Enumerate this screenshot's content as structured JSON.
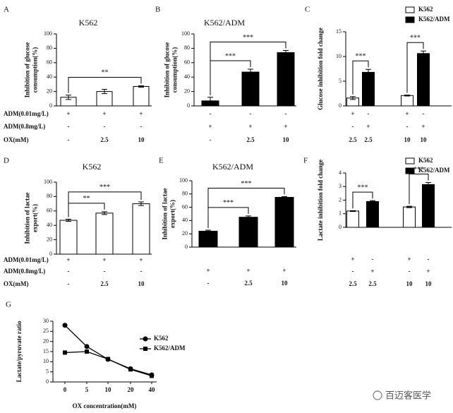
{
  "chart_data": [
    {
      "type": "bar",
      "letter": "A",
      "title": "K562",
      "ylabel": [
        "Inhibition of glucose",
        "consumption(%)"
      ],
      "ylim": [
        0,
        100
      ],
      "yticks": [
        0,
        20,
        40,
        60,
        80,
        100
      ],
      "series": [
        {
          "color": "#ffffff",
          "values": [
            12,
            20,
            27
          ],
          "errors": [
            3,
            3,
            1
          ]
        }
      ],
      "conditions": [
        {
          "label": "ADM(0.01mg/L)",
          "values": [
            "+",
            "+",
            "+"
          ]
        },
        {
          "label": "ADM(0.8mg/L)",
          "values": [
            "-",
            "-",
            "-"
          ]
        },
        {
          "label": "OX(mM)",
          "values": [
            "-",
            "2.5",
            "10"
          ]
        }
      ],
      "annotations": [
        {
          "text": "**",
          "between": [
            0,
            2
          ]
        }
      ]
    },
    {
      "type": "bar",
      "letter": "B",
      "title": "K562/ADM",
      "ylabel": [
        "Inhibition of glucose",
        "consumption(%)"
      ],
      "ylim": [
        0,
        100
      ],
      "yticks": [
        0,
        20,
        40,
        60,
        80,
        100
      ],
      "series": [
        {
          "color": "#000000",
          "values": [
            7,
            47,
            74
          ],
          "errors": [
            5,
            4,
            3
          ]
        }
      ],
      "conditions": [
        {
          "values": [
            "-",
            "-",
            "-"
          ]
        },
        {
          "values": [
            "+",
            "+",
            "+"
          ]
        },
        {
          "values": [
            "-",
            "2.5",
            "10"
          ]
        }
      ],
      "annotations": [
        {
          "text": "***",
          "between": [
            0,
            1
          ]
        },
        {
          "text": "***",
          "between": [
            0,
            2
          ]
        }
      ]
    },
    {
      "type": "bar",
      "letter": "C",
      "ylabel": [
        "Glucose inhibition fold change"
      ],
      "ylim": [
        0,
        15
      ],
      "yticks": [
        0,
        5,
        10,
        15
      ],
      "series": [
        {
          "name": "K562",
          "color": "#ffffff",
          "values": [
            1.6,
            null,
            2.1,
            null
          ],
          "errors": [
            0.3,
            null,
            0.1,
            null
          ]
        },
        {
          "name": "K562/ADM",
          "color": "#000000",
          "values": [
            null,
            6.8,
            null,
            10.6
          ],
          "errors": [
            null,
            0.6,
            null,
            0.5
          ]
        }
      ],
      "conditions": [
        {
          "values": [
            "+",
            "-",
            "+",
            "-"
          ]
        },
        {
          "values": [
            "-",
            "+",
            "-",
            "+"
          ]
        },
        {
          "values": [
            "2.5",
            "2.5",
            "10",
            "10"
          ]
        }
      ],
      "annotations": [
        {
          "text": "***",
          "between": [
            0,
            1
          ]
        },
        {
          "text": "***",
          "between": [
            2,
            3
          ]
        }
      ]
    },
    {
      "type": "bar",
      "letter": "D",
      "title": "K562",
      "ylabel": [
        "Inhibition of lactae",
        "export(%)"
      ],
      "ylim": [
        0,
        100
      ],
      "yticks": [
        0,
        20,
        40,
        60,
        80,
        100
      ],
      "series": [
        {
          "color": "#ffffff",
          "values": [
            47,
            57,
            70
          ],
          "errors": [
            1.5,
            2,
            2.5
          ]
        }
      ],
      "conditions": [
        {
          "label": "ADM(0.01mg/L)",
          "values": [
            "+",
            "+",
            "+"
          ]
        },
        {
          "label": "ADM(0.8mg/L)",
          "values": [
            "-",
            "-",
            "-"
          ]
        },
        {
          "label": "OX(mM)",
          "values": [
            "-",
            "2.5",
            "10"
          ]
        }
      ],
      "annotations": [
        {
          "text": "**",
          "between": [
            0,
            1
          ]
        },
        {
          "text": "***",
          "between": [
            0,
            2
          ]
        }
      ]
    },
    {
      "type": "bar",
      "letter": "E",
      "title": "K562/ADM",
      "ylabel": [
        "Inhibition of lactae",
        "export(%)"
      ],
      "ylim": [
        0,
        100
      ],
      "yticks": [
        0,
        20,
        40,
        60,
        80,
        100
      ],
      "series": [
        {
          "color": "#000000",
          "values": [
            24,
            45,
            75
          ],
          "errors": [
            1.5,
            2,
            1
          ]
        }
      ],
      "conditions": [
        {
          "values": [
            "+",
            "+",
            "+"
          ]
        },
        {
          "values": [
            "-",
            "2.5",
            "10"
          ]
        }
      ],
      "annotations": [
        {
          "text": "***",
          "between": [
            0,
            1
          ]
        },
        {
          "text": "***",
          "between": [
            0,
            2
          ]
        }
      ]
    },
    {
      "type": "bar",
      "letter": "F",
      "ylabel": [
        "Lactate inhibition fold change"
      ],
      "ylim": [
        0,
        4
      ],
      "yticks": [
        0,
        1,
        2,
        3,
        4
      ],
      "series": [
        {
          "name": "K562",
          "color": "#ffffff",
          "values": [
            1.2,
            null,
            1.5,
            null
          ],
          "errors": [
            0.03,
            null,
            0.05,
            null
          ]
        },
        {
          "name": "K562/ADM",
          "color": "#000000",
          "values": [
            null,
            1.9,
            null,
            3.15
          ],
          "errors": [
            null,
            0.07,
            null,
            0.15
          ]
        }
      ],
      "conditions": [
        {
          "values": [
            "+",
            "-",
            "+",
            "-"
          ]
        },
        {
          "values": [
            "-",
            "+",
            "-",
            "+"
          ]
        },
        {
          "values": [
            "2.5",
            "2.5",
            "10",
            "10"
          ]
        }
      ],
      "annotations": [
        {
          "text": "***",
          "between": [
            0,
            1
          ]
        },
        {
          "text": "***",
          "between": [
            2,
            3
          ]
        }
      ]
    },
    {
      "type": "line",
      "letter": "G",
      "ylabel": [
        "Lactate/pyruvate ratio"
      ],
      "xlabel": "OX concentration(mM)",
      "categories": [
        "0",
        "5",
        "10",
        "20",
        "40"
      ],
      "ylim": [
        0,
        30
      ],
      "yticks": [
        0,
        5,
        10,
        15,
        20,
        25,
        30
      ],
      "series": [
        {
          "name": "K562",
          "color": "#000000",
          "marker": "circle",
          "values": [
            28,
            17.5,
            11.2,
            6.5,
            3.5
          ]
        },
        {
          "name": "K562/ADM",
          "color": "#000000",
          "marker": "square",
          "values": [
            14.5,
            15,
            11.3,
            6.2,
            3
          ]
        }
      ]
    }
  ],
  "watermark": "百迈客医学"
}
